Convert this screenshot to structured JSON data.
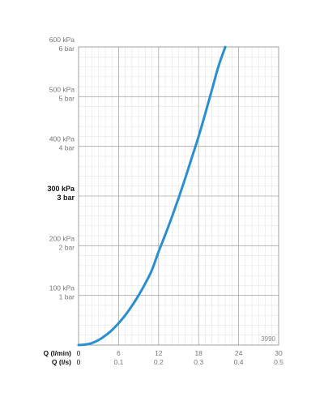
{
  "chart_data": {
    "type": "line",
    "y_ticks": [
      {
        "value": 0,
        "kpa": "",
        "bar": "",
        "bold": false
      },
      {
        "value": 100,
        "kpa": "100 kPa",
        "bar": "1 bar",
        "bold": false
      },
      {
        "value": 200,
        "kpa": "200 kPa",
        "bar": "2 bar",
        "bold": false
      },
      {
        "value": 300,
        "kpa": "300 kPa",
        "bar": "3 bar",
        "bold": true
      },
      {
        "value": 400,
        "kpa": "400 kPa",
        "bar": "4 bar",
        "bold": false
      },
      {
        "value": 500,
        "kpa": "500 kPa",
        "bar": "5 bar",
        "bold": false
      },
      {
        "value": 600,
        "kpa": "600 kPa",
        "bar": "6 bar",
        "bold": false
      }
    ],
    "ylim": [
      0,
      600
    ],
    "xlim": [
      0,
      30
    ],
    "x_ticks": [
      {
        "value": 0,
        "lmin": "0",
        "ls": "0"
      },
      {
        "value": 6,
        "lmin": "6",
        "ls": "0.1"
      },
      {
        "value": 12,
        "lmin": "12",
        "ls": "0.2"
      },
      {
        "value": 18,
        "lmin": "18",
        "ls": "0.3"
      },
      {
        "value": 24,
        "lmin": "24",
        "ls": "0.4"
      },
      {
        "value": 30,
        "lmin": "30",
        "ls": "0.5"
      }
    ],
    "x_axis_labels": [
      "Q (l/min)",
      "Q (l/s)"
    ],
    "annotation": "3990",
    "grid": true,
    "series": [
      {
        "color": "#2a8fd0",
        "points": [
          {
            "x": 0,
            "y": 0
          },
          {
            "x": 1,
            "y": 1
          },
          {
            "x": 2,
            "y": 4
          },
          {
            "x": 3,
            "y": 10
          },
          {
            "x": 4,
            "y": 19
          },
          {
            "x": 5,
            "y": 30
          },
          {
            "x": 6,
            "y": 44
          },
          {
            "x": 7,
            "y": 60
          },
          {
            "x": 8,
            "y": 79
          },
          {
            "x": 9,
            "y": 100
          },
          {
            "x": 10,
            "y": 124
          },
          {
            "x": 11,
            "y": 151
          },
          {
            "x": 12,
            "y": 188
          },
          {
            "x": 13,
            "y": 222
          },
          {
            "x": 14,
            "y": 258
          },
          {
            "x": 15,
            "y": 296
          },
          {
            "x": 16,
            "y": 336
          },
          {
            "x": 17,
            "y": 378
          },
          {
            "x": 18,
            "y": 420
          },
          {
            "x": 19,
            "y": 466
          },
          {
            "x": 20,
            "y": 514
          },
          {
            "x": 21,
            "y": 562
          },
          {
            "x": 22,
            "y": 600
          }
        ]
      }
    ]
  }
}
